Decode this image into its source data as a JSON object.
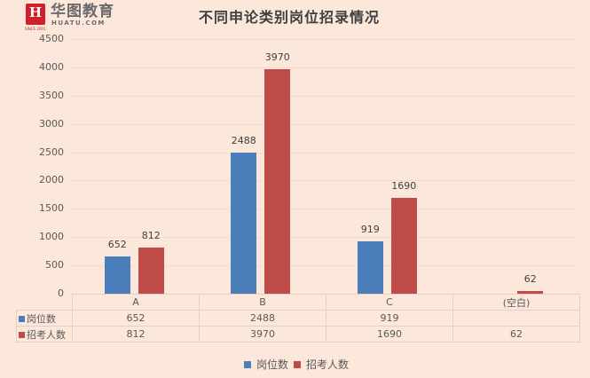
{
  "brand": {
    "logo_glyph": "H",
    "since": "SINCE 2001",
    "name_cn": "华图教育",
    "name_en": "HUATU.COM"
  },
  "chart_data": {
    "type": "bar",
    "title": "不同申论类别岗位招录情况",
    "categories": [
      "A",
      "B",
      "C",
      "(空白)"
    ],
    "series": [
      {
        "name": "岗位数",
        "color": "#4a7ebb",
        "values": [
          652,
          2488,
          919,
          null
        ]
      },
      {
        "name": "招考人数",
        "color": "#be4b48",
        "values": [
          812,
          3970,
          1690,
          62
        ]
      }
    ],
    "xlabel": "",
    "ylabel": "",
    "ylim": [
      0,
      4500
    ],
    "yticks": [
      0,
      500,
      1000,
      1500,
      2000,
      2500,
      3000,
      3500,
      4000,
      4500
    ],
    "grid": true,
    "legend_position": "bottom",
    "data_table": true
  },
  "table": {
    "header": [
      "A",
      "B",
      "C",
      "(空白)"
    ],
    "rows": [
      {
        "label": "岗位数",
        "values": [
          "652",
          "2488",
          "919",
          ""
        ]
      },
      {
        "label": "招考人数",
        "values": [
          "812",
          "3970",
          "1690",
          "62"
        ]
      }
    ]
  },
  "labels": {
    "b0": "652",
    "r0": "812",
    "b1": "2488",
    "r1": "3970",
    "b2": "919",
    "r2": "1690",
    "r3": "62"
  },
  "legend": {
    "items": [
      {
        "label": "岗位数",
        "color": "#4a7ebb"
      },
      {
        "label": "招考人数",
        "color": "#be4b48"
      }
    ]
  }
}
